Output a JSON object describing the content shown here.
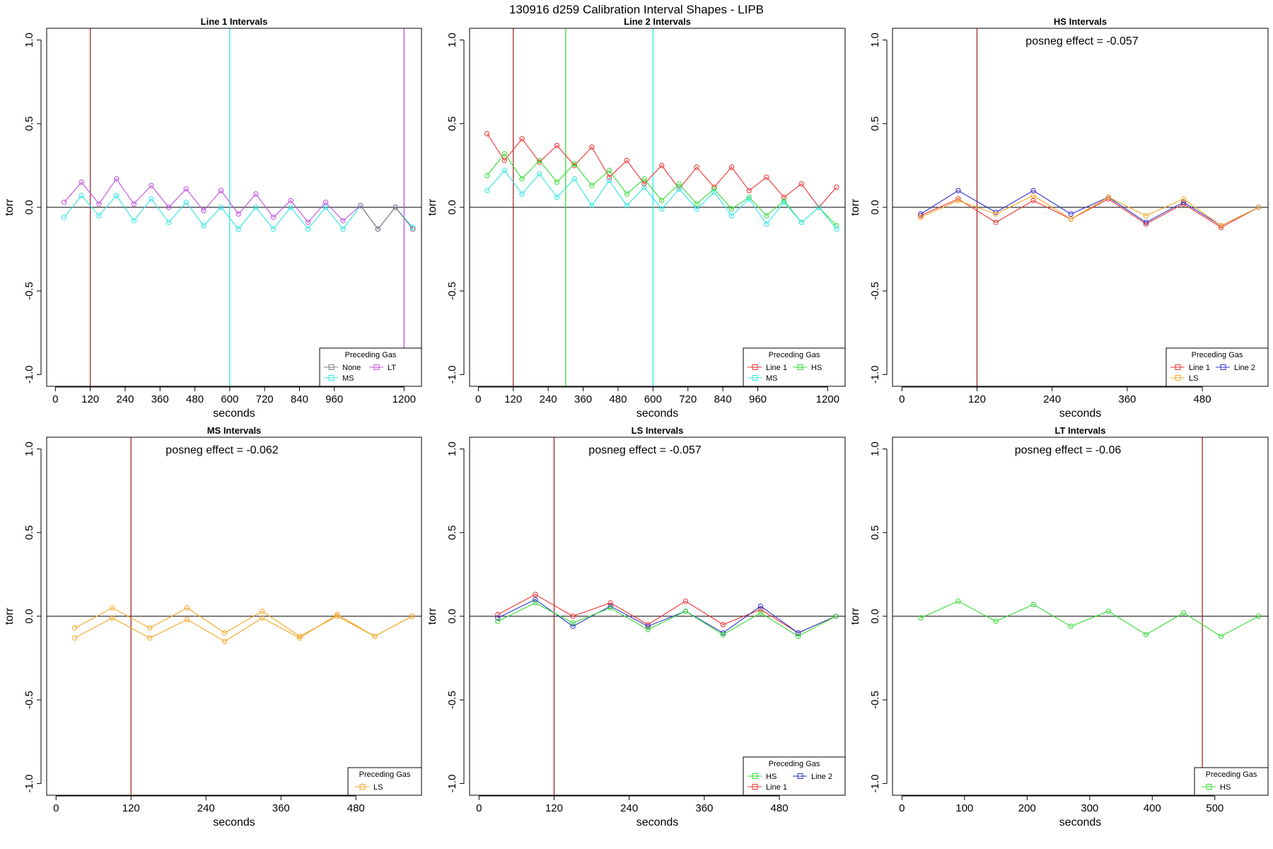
{
  "figure": {
    "title": "130916   d259   Calibration Interval Shapes - LIPB",
    "ylabel": "torr",
    "xlabel": "seconds",
    "legend_title": "Preceding Gas",
    "yticks": [
      -1.0,
      -0.5,
      0.0,
      0.5,
      1.0
    ],
    "ytick_labels": [
      "-1.0",
      "-0.5",
      "0.0",
      "0.5",
      "1.0"
    ],
    "colors": {
      "None": "#808080",
      "MS": "#33e6e6",
      "LT": "#c050e0",
      "Line 1": "#ee3333",
      "Line 2": "#3333cc",
      "HS": "#33dd33",
      "LS": "#f5a623",
      "vline_dark_red": "#a52a2a"
    }
  },
  "chart_data": [
    {
      "type": "line",
      "title": "Line 1 Intervals",
      "annotation": "",
      "xlim": [
        -30,
        1260
      ],
      "ylim": [
        -1.07,
        1.07
      ],
      "xticks": [
        0,
        120,
        240,
        360,
        480,
        600,
        720,
        840,
        960,
        1200
      ],
      "xtick_labels": [
        "0",
        "120",
        "240",
        "360",
        "480",
        "600",
        "720",
        "840",
        "960",
        "1200"
      ],
      "vlines": [
        {
          "x": 120,
          "color": "vline_dark_red"
        },
        {
          "x": 600,
          "color": "MS"
        },
        {
          "x": 1200,
          "color": "LT"
        }
      ],
      "legend": {
        "items": [
          "None",
          "MS",
          "LT"
        ],
        "layout": [
          [
            0,
            2
          ],
          [
            1
          ]
        ]
      },
      "series": [
        {
          "name": "MS",
          "x": [
            30,
            90,
            150,
            210,
            270,
            330,
            390,
            450,
            510,
            570,
            630,
            690,
            750,
            810,
            870,
            930,
            990,
            1050,
            1110,
            1170,
            1230
          ],
          "y": [
            -0.06,
            0.07,
            -0.05,
            0.07,
            -0.08,
            0.05,
            -0.09,
            0.03,
            -0.11,
            0.0,
            -0.13,
            0.0,
            -0.13,
            0.0,
            -0.13,
            0.0,
            -0.13,
            0.01,
            -0.13,
            0.0,
            -0.12
          ]
        },
        {
          "name": "LT",
          "x": [
            30,
            90,
            150,
            210,
            270,
            330,
            390,
            450,
            510,
            570,
            630,
            690,
            750,
            810,
            870,
            930,
            990,
            1050,
            1110,
            1170,
            1230
          ],
          "y": [
            0.03,
            0.15,
            0.02,
            0.17,
            0.02,
            0.13,
            0.0,
            0.11,
            -0.02,
            0.1,
            -0.04,
            0.08,
            -0.06,
            0.04,
            -0.09,
            0.03,
            -0.08,
            0.01,
            -0.13,
            0.0,
            -0.13
          ]
        },
        {
          "name": "None",
          "x": [
            1050,
            1110,
            1170,
            1230
          ],
          "y": [
            0.01,
            -0.13,
            0.0,
            -0.13
          ]
        }
      ]
    },
    {
      "type": "line",
      "title": "Line 2 Intervals",
      "annotation": "",
      "xlim": [
        -30,
        1260
      ],
      "ylim": [
        -1.07,
        1.07
      ],
      "xticks": [
        0,
        120,
        240,
        360,
        480,
        600,
        720,
        840,
        960,
        1200
      ],
      "xtick_labels": [
        "0",
        "120",
        "240",
        "360",
        "480",
        "600",
        "720",
        "840",
        "960",
        "1200"
      ],
      "vlines": [
        {
          "x": 120,
          "color": "vline_dark_red"
        },
        {
          "x": 300,
          "color": "HS"
        },
        {
          "x": 600,
          "color": "MS"
        }
      ],
      "legend": {
        "items": [
          "Line 1",
          "HS",
          "MS"
        ],
        "layout": [
          [
            0,
            1
          ],
          [
            2
          ]
        ]
      },
      "series": [
        {
          "name": "Line 1",
          "x": [
            30,
            90,
            150,
            210,
            270,
            330,
            390,
            450,
            510,
            570,
            630,
            690,
            750,
            810,
            870,
            930,
            990,
            1050,
            1110,
            1170,
            1230
          ],
          "y": [
            0.44,
            0.28,
            0.41,
            0.27,
            0.37,
            0.25,
            0.36,
            0.18,
            0.28,
            0.14,
            0.25,
            0.11,
            0.24,
            0.12,
            0.24,
            0.1,
            0.18,
            0.06,
            0.14,
            0.0,
            0.12
          ]
        },
        {
          "name": "HS",
          "x": [
            30,
            90,
            150,
            210,
            270,
            330,
            390,
            450,
            510,
            570,
            630,
            690,
            750,
            810,
            870,
            930,
            990,
            1050,
            1110,
            1170,
            1230
          ],
          "y": [
            0.19,
            0.32,
            0.17,
            0.28,
            0.15,
            0.26,
            0.13,
            0.22,
            0.08,
            0.17,
            0.04,
            0.14,
            0.02,
            0.11,
            -0.01,
            0.06,
            -0.05,
            0.04,
            -0.09,
            0.0,
            -0.11
          ]
        },
        {
          "name": "MS",
          "x": [
            30,
            90,
            150,
            210,
            270,
            330,
            390,
            450,
            510,
            570,
            630,
            690,
            750,
            810,
            870,
            930,
            990,
            1050,
            1110,
            1170,
            1230
          ],
          "y": [
            0.1,
            0.22,
            0.08,
            0.2,
            0.06,
            0.17,
            0.01,
            0.16,
            0.01,
            0.12,
            -0.01,
            0.11,
            -0.01,
            0.09,
            -0.05,
            0.05,
            -0.1,
            0.03,
            -0.09,
            0.0,
            -0.13
          ]
        }
      ]
    },
    {
      "type": "line",
      "title": "HS Intervals",
      "annotation": "posneg effect = -0.057",
      "xlim": [
        -15,
        585
      ],
      "ylim": [
        -1.07,
        1.07
      ],
      "xticks": [
        0,
        120,
        240,
        360,
        480
      ],
      "xtick_labels": [
        "0",
        "120",
        "240",
        "360",
        "480"
      ],
      "vlines": [
        {
          "x": 120,
          "color": "vline_dark_red"
        }
      ],
      "legend": {
        "items": [
          "Line 1",
          "Line 2",
          "LS"
        ],
        "layout": [
          [
            0,
            1
          ],
          [
            2
          ]
        ]
      },
      "series": [
        {
          "name": "Line 1",
          "x": [
            30,
            90,
            150,
            210,
            270,
            330,
            390,
            450,
            510,
            570
          ],
          "y": [
            -0.05,
            0.05,
            -0.09,
            0.04,
            -0.07,
            0.05,
            -0.1,
            0.02,
            -0.12,
            0.0
          ]
        },
        {
          "name": "Line 2",
          "x": [
            30,
            90,
            150,
            210,
            270,
            330,
            390,
            450,
            510,
            570
          ],
          "y": [
            -0.04,
            0.1,
            -0.03,
            0.1,
            -0.04,
            0.06,
            -0.09,
            0.03,
            -0.11,
            0.0
          ]
        },
        {
          "name": "LS",
          "x": [
            30,
            90,
            150,
            210,
            270,
            330,
            390,
            450,
            510,
            570
          ],
          "y": [
            -0.06,
            0.04,
            -0.04,
            0.07,
            -0.07,
            0.06,
            -0.05,
            0.05,
            -0.11,
            0.0
          ]
        }
      ]
    },
    {
      "type": "line",
      "title": "MS Intervals",
      "annotation": "posneg effect = -0.062",
      "xlim": [
        -15,
        585
      ],
      "ylim": [
        -1.07,
        1.07
      ],
      "xticks": [
        0,
        120,
        240,
        360,
        480
      ],
      "xtick_labels": [
        "0",
        "120",
        "240",
        "360",
        "480"
      ],
      "vlines": [
        {
          "x": 120,
          "color": "vline_dark_red"
        }
      ],
      "legend": {
        "items": [
          "LS"
        ],
        "layout": [
          [
            0
          ]
        ]
      },
      "series": [
        {
          "name": "LS",
          "x": [
            30,
            90,
            150,
            210,
            270,
            330,
            390,
            450,
            510,
            570
          ],
          "y": [
            -0.07,
            0.05,
            -0.07,
            0.05,
            -0.1,
            0.03,
            -0.12,
            0.0,
            -0.12,
            0.0
          ]
        },
        {
          "name": "LS",
          "x": [
            30,
            90,
            150,
            210,
            270,
            330,
            390,
            450,
            510,
            570
          ],
          "y": [
            -0.13,
            -0.01,
            -0.13,
            -0.02,
            -0.15,
            -0.01,
            -0.13,
            0.01,
            -0.12,
            0.0
          ]
        }
      ]
    },
    {
      "type": "line",
      "title": "LS Intervals",
      "annotation": "posneg effect = -0.057",
      "xlim": [
        -15,
        585
      ],
      "ylim": [
        -1.07,
        1.07
      ],
      "xticks": [
        0,
        120,
        240,
        360,
        480
      ],
      "xtick_labels": [
        "0",
        "120",
        "240",
        "360",
        "480"
      ],
      "vlines": [
        {
          "x": 120,
          "color": "vline_dark_red"
        }
      ],
      "legend": {
        "items": [
          "HS",
          "Line 2",
          "Line 1"
        ],
        "layout": [
          [
            0,
            1
          ],
          [
            2
          ]
        ]
      },
      "series": [
        {
          "name": "Line 1",
          "x": [
            30,
            90,
            150,
            210,
            270,
            330,
            390,
            450,
            510,
            570
          ],
          "y": [
            0.01,
            0.13,
            0.0,
            0.08,
            -0.05,
            0.09,
            -0.05,
            0.04,
            -0.1,
            0.0
          ]
        },
        {
          "name": "Line 2",
          "x": [
            30,
            90,
            150,
            210,
            270,
            330,
            390,
            450,
            510,
            570
          ],
          "y": [
            -0.01,
            0.1,
            -0.06,
            0.06,
            -0.06,
            0.03,
            -0.1,
            0.06,
            -0.1,
            0.0
          ]
        },
        {
          "name": "HS",
          "x": [
            30,
            90,
            150,
            210,
            270,
            330,
            390,
            450,
            510,
            570
          ],
          "y": [
            -0.03,
            0.08,
            -0.04,
            0.05,
            -0.08,
            0.03,
            -0.11,
            0.02,
            -0.12,
            0.0
          ]
        }
      ]
    },
    {
      "type": "line",
      "title": "LT Intervals",
      "annotation": "posneg effect = -0.06",
      "xlim": [
        -15,
        585
      ],
      "ylim": [
        -1.07,
        1.07
      ],
      "xticks": [
        0,
        100,
        200,
        300,
        400,
        500
      ],
      "xtick_labels": [
        "0",
        "100",
        "200",
        "300",
        "400",
        "500"
      ],
      "vlines": [
        {
          "x": 480,
          "color": "vline_dark_red"
        }
      ],
      "legend": {
        "items": [
          "HS"
        ],
        "layout": [
          [
            0
          ]
        ]
      },
      "series": [
        {
          "name": "HS",
          "x": [
            30,
            90,
            150,
            210,
            270,
            330,
            390,
            450,
            510,
            570
          ],
          "y": [
            -0.01,
            0.09,
            -0.03,
            0.07,
            -0.06,
            0.03,
            -0.11,
            0.02,
            -0.12,
            0.0
          ]
        }
      ]
    }
  ]
}
